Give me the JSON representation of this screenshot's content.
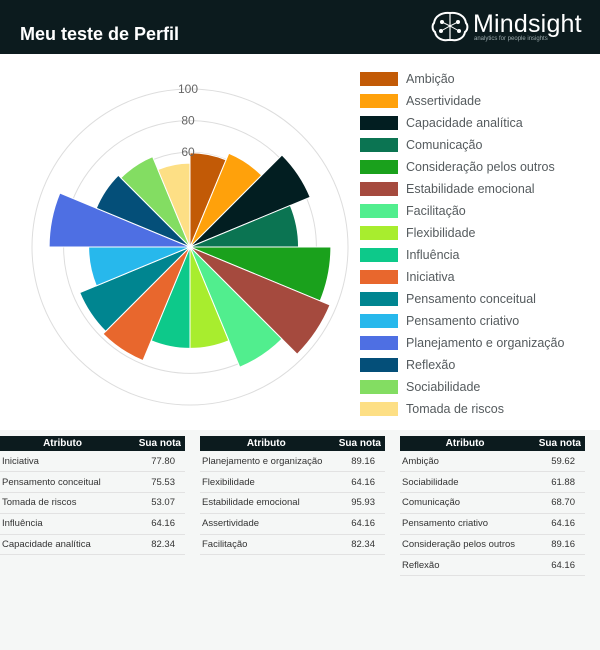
{
  "header": {
    "title": "Meu teste de Perfil"
  },
  "brand": {
    "name": "Mindsight",
    "tagline": "analytics for people insights"
  },
  "colors": {
    "header_bg": "#0c1b1e",
    "grid": "#dddddd"
  },
  "chart_data": {
    "type": "polar-area",
    "r_ticks": [
      "100",
      "80",
      "60"
    ],
    "r_tick_values": [
      100,
      80,
      60
    ],
    "legend_position": "right",
    "categories": [
      "Ambição",
      "Assertividade",
      "Capacidade analítica",
      "Comunicação",
      "Consideração pelos outros",
      "Estabilidade emocional",
      "Facilitação",
      "Flexibilidade",
      "Influência",
      "Iniciativa",
      "Pensamento conceitual",
      "Pensamento criativo",
      "Planejamento e organização",
      "Reflexão",
      "Sociabilidade",
      "Tomada de riscos"
    ],
    "values": [
      59.62,
      64.16,
      82.34,
      68.7,
      89.16,
      95.93,
      82.34,
      64.16,
      64.16,
      77.8,
      75.53,
      64.16,
      89.16,
      64.16,
      61.88,
      53.07
    ],
    "colors": [
      "#c25a06",
      "#ffa10b",
      "#021e21",
      "#0b7452",
      "#1aa11c",
      "#a54a3e",
      "#51ee8e",
      "#a8ed2e",
      "#0dc98a",
      "#e8672d",
      "#008590",
      "#27b8ec",
      "#4e6fe3",
      "#044f79",
      "#83dd62",
      "#fddf85"
    ]
  },
  "tables": {
    "header_attr": "Atributo",
    "header_score": "Sua nota",
    "t1": [
      {
        "attr": "Iniciativa",
        "score": "77.80"
      },
      {
        "attr": "Pensamento conceitual",
        "score": "75.53"
      },
      {
        "attr": "Tomada de riscos",
        "score": "53.07"
      },
      {
        "attr": "Influência",
        "score": "64.16"
      },
      {
        "attr": "Capacidade analítica",
        "score": "82.34"
      }
    ],
    "t2": [
      {
        "attr": "Planejamento e organização",
        "score": "89.16"
      },
      {
        "attr": "Flexibilidade",
        "score": "64.16"
      },
      {
        "attr": "Estabilidade emocional",
        "score": "95.93"
      },
      {
        "attr": "Assertividade",
        "score": "64.16"
      },
      {
        "attr": "Facilitação",
        "score": "82.34"
      }
    ],
    "t3": [
      {
        "attr": "Ambição",
        "score": "59.62"
      },
      {
        "attr": "Sociabilidade",
        "score": "61.88"
      },
      {
        "attr": "Comunicação",
        "score": "68.70"
      },
      {
        "attr": "Pensamento criativo",
        "score": "64.16"
      },
      {
        "attr": "Consideração pelos outros",
        "score": "89.16"
      },
      {
        "attr": "Reflexão",
        "score": "64.16"
      }
    ]
  }
}
